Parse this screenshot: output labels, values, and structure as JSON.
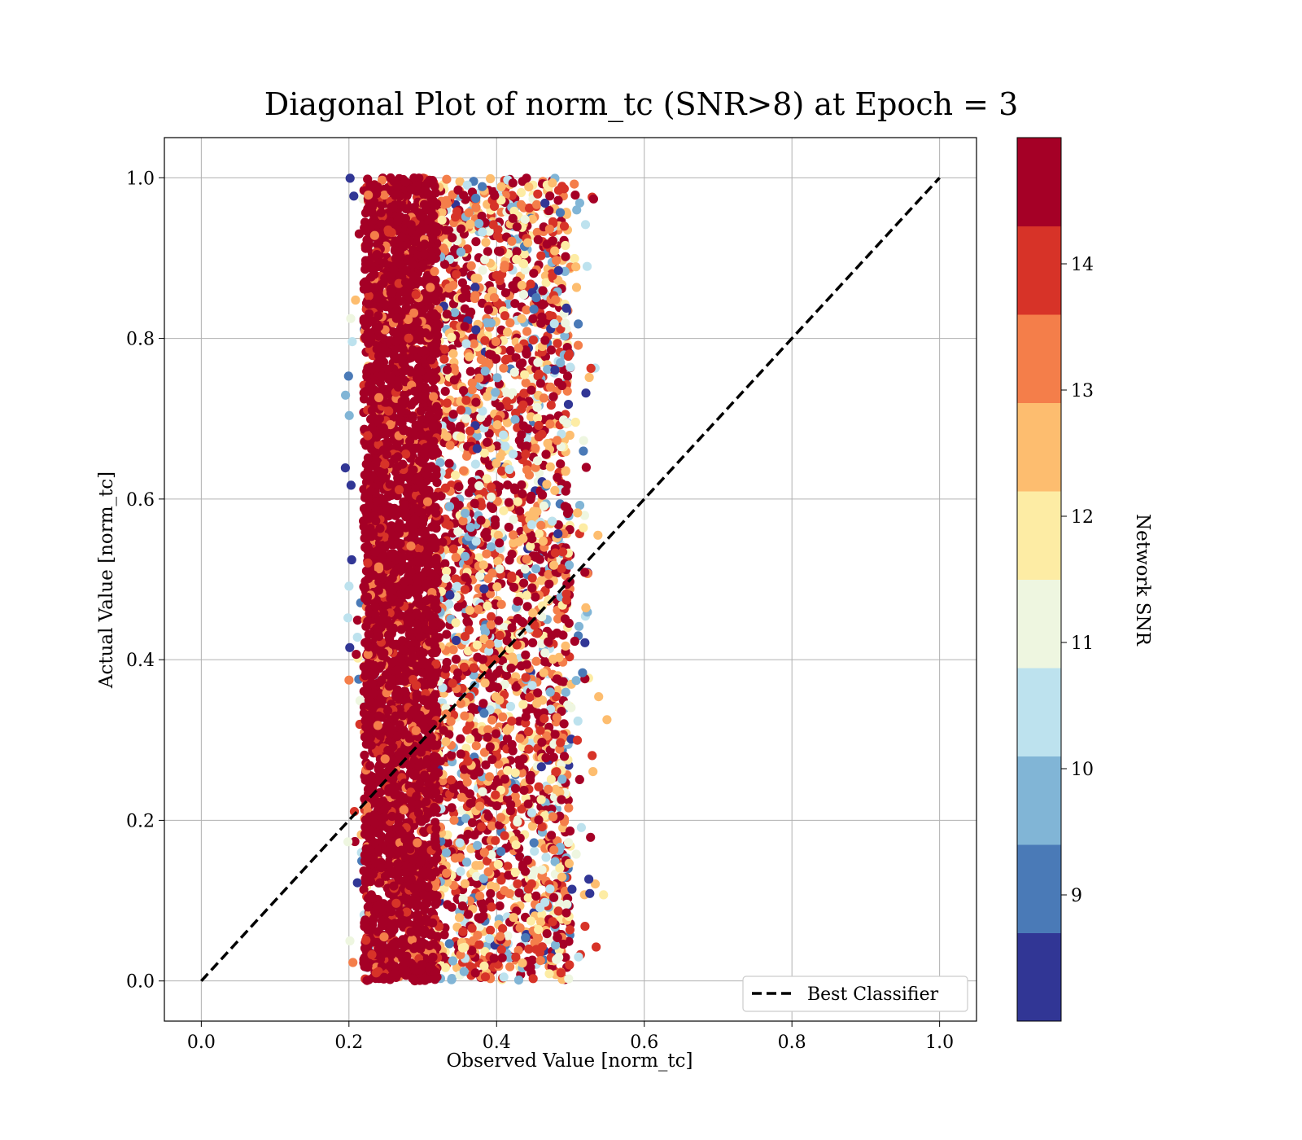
{
  "chart_data": {
    "type": "scatter",
    "title": "Diagonal Plot of norm_tc (SNR>8) at Epoch = 3",
    "xlabel": "Observed Value [norm_tc]",
    "ylabel": "Actual Value [norm_tc]",
    "xlim": [
      -0.05,
      1.05
    ],
    "ylim": [
      -0.05,
      1.05
    ],
    "xticks": [
      "0.0",
      "0.2",
      "0.4",
      "0.6",
      "0.8",
      "1.0"
    ],
    "yticks": [
      "0.0",
      "0.2",
      "0.4",
      "0.6",
      "0.8",
      "1.0"
    ],
    "grid": true,
    "legend": {
      "position": "lower-right",
      "label": "Best Classifier"
    },
    "reference_line": {
      "label": "Best Classifier",
      "x": [
        0.0,
        1.0
      ],
      "y": [
        0.0,
        1.0
      ],
      "style": "dashed",
      "color": "#000000"
    },
    "colorbar": {
      "label": "Network SNR",
      "range": [
        8,
        15
      ],
      "ticks": [
        "9",
        "10",
        "11",
        "12",
        "13",
        "14"
      ],
      "colors": [
        "#313695",
        "#4a7ab7",
        "#81b5d6",
        "#bde2ee",
        "#eef6e0",
        "#fdeca4",
        "#fdbd6f",
        "#f47e4a",
        "#d73328",
        "#a50026"
      ]
    },
    "point_cloud": {
      "description_x_range": [
        0.2,
        0.53
      ],
      "y_range": [
        0.0,
        1.0
      ],
      "dense_core_x": [
        0.22,
        0.32
      ],
      "dense_core_snr": "high (~14-15)",
      "outer_band_x": [
        0.32,
        0.5
      ],
      "outer_band_snr": "mixed 8-15"
    }
  }
}
